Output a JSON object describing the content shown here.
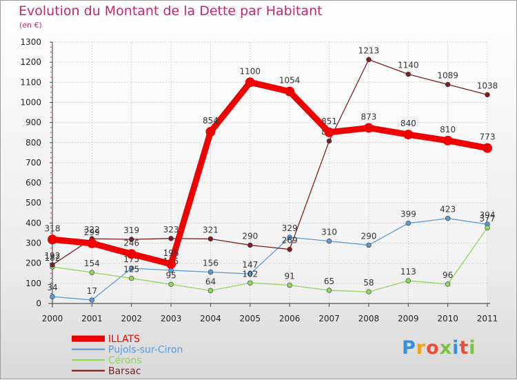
{
  "title": "Evolution du Montant de la Dette par Habitant",
  "subtitle": "(en €)",
  "logo": {
    "text": "Proxiti",
    "letter_colors": [
      "#3a8fd8",
      "#f4a11a",
      "#e94e3a",
      "#7cc242",
      "#3a8fd8",
      "#e94e3a",
      "#7cc242"
    ]
  },
  "chart_data": {
    "type": "line",
    "x": [
      "2000",
      "2001",
      "2002",
      "2003",
      "2004",
      "2005",
      "2006",
      "2007",
      "2008",
      "2009",
      "2010",
      "2011"
    ],
    "ylim": [
      0,
      1300
    ],
    "yticks": [
      0,
      100,
      200,
      300,
      400,
      500,
      600,
      700,
      800,
      900,
      1000,
      1100,
      1200,
      1300
    ],
    "grid": true,
    "legend_position": "bottom-left",
    "series": [
      {
        "name": "ILLATS",
        "color": "#ee0000",
        "emphasis": true,
        "values": [
          318,
          299,
          246,
          196,
          854,
          1100,
          1054,
          851,
          873,
          840,
          810,
          773
        ]
      },
      {
        "name": "Pujols-sur-Ciron",
        "color": "#5a9ad6",
        "values": [
          34,
          17,
          175,
          165,
          156,
          147,
          329,
          310,
          290,
          399,
          423,
          394
        ]
      },
      {
        "name": "Cérons",
        "color": "#8fd65a",
        "values": [
          182,
          154,
          125,
          95,
          64,
          102,
          91,
          65,
          58,
          113,
          96,
          377
        ]
      },
      {
        "name": "Barsac",
        "color": "#7a1f1f",
        "values": [
          192,
          322,
          319,
          323,
          321,
          290,
          269,
          808,
          1213,
          1140,
          1089,
          1038
        ]
      }
    ]
  }
}
